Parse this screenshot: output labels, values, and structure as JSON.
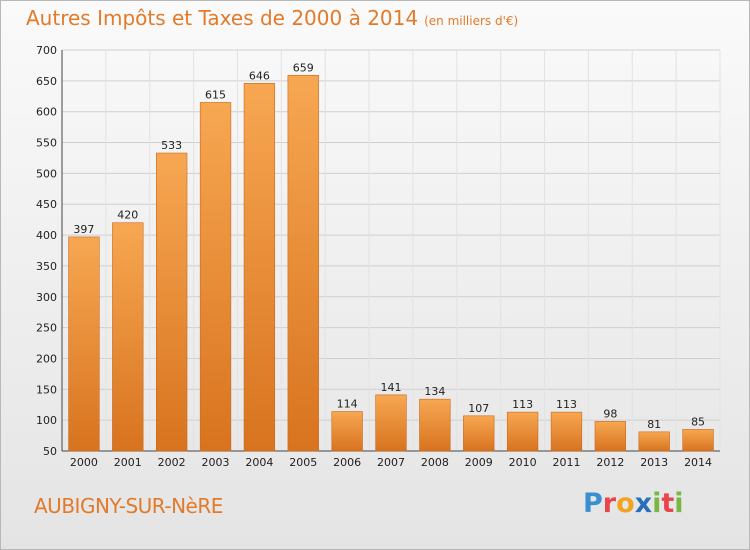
{
  "title": "Autres Impôts et Taxes de 2000 à 2014",
  "subtitle": "(en milliers d'€)",
  "commune": "AUBIGNY-SUR-NèRE",
  "logo": {
    "text": "Proxiti",
    "letters": [
      "P",
      "r",
      "o",
      "x",
      "i",
      "t",
      "i"
    ]
  },
  "colors": {
    "bar_light": "#f7a752",
    "bar_dark": "#d8731f",
    "title": "#e37a2a",
    "grid": "#c8c8c8"
  },
  "chart_data": {
    "type": "bar",
    "title": "Autres Impôts et Taxes de 2000 à 2014",
    "subtitle": "(en milliers d'€)",
    "categories": [
      "2000",
      "2001",
      "2002",
      "2003",
      "2004",
      "2005",
      "2006",
      "2007",
      "2008",
      "2009",
      "2010",
      "2011",
      "2012",
      "2013",
      "2014"
    ],
    "values": [
      397,
      420,
      533,
      615,
      646,
      659,
      114,
      141,
      134,
      107,
      113,
      113,
      98,
      81,
      85
    ],
    "ylim": [
      50,
      700
    ],
    "yticks": [
      50,
      100,
      150,
      200,
      250,
      300,
      350,
      400,
      450,
      500,
      550,
      600,
      650,
      700
    ],
    "grid": true,
    "data_labels": true
  }
}
